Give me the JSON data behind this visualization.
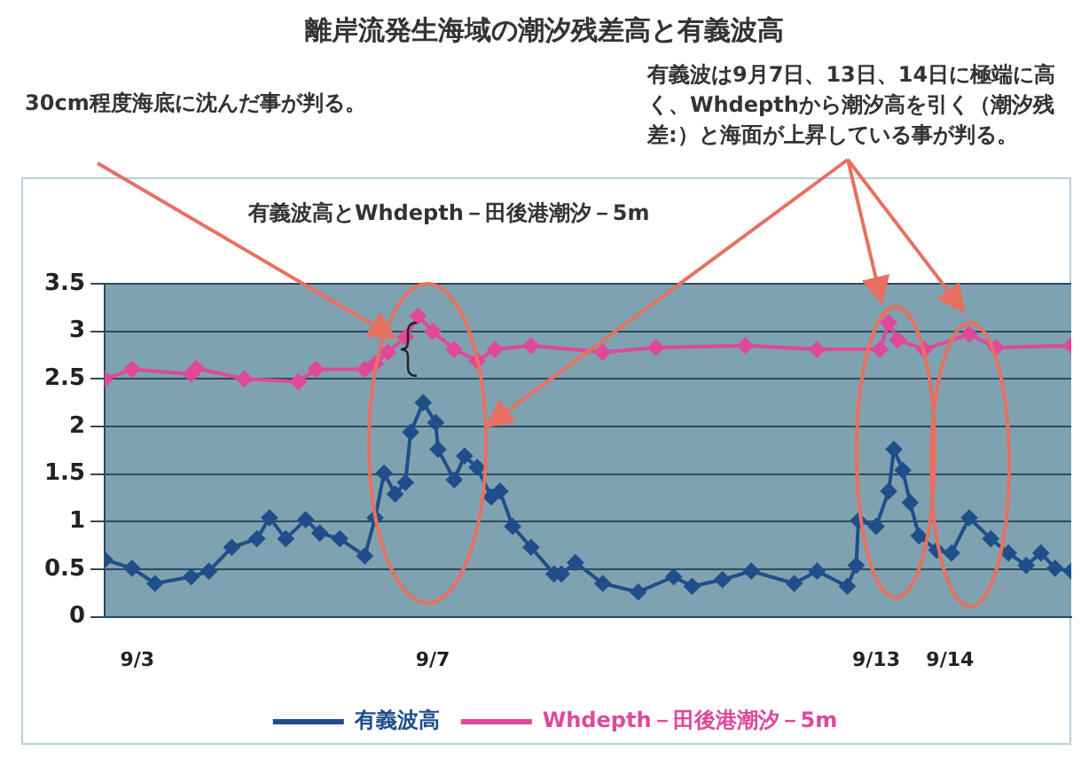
{
  "chart_data": {
    "type": "line",
    "title": "離岸流発生海域の潮汐残差高と有義波高",
    "subtitle": "有義波高とWhdepth－田後港潮汐－5m",
    "annotations": [
      "30cm程度海底に沈んだ事が判る。",
      "有義波は9月7日、13日、14日に極端に高く、Whdepthから潮汐高を引く（潮汐残差:）と海面が上昇している事が判る。"
    ],
    "xlim": [
      "--09-02T13:26",
      "--09-15T15:22"
    ],
    "xticks": [
      {
        "value": "--09-03",
        "label": "9/3"
      },
      {
        "value": "--09-07",
        "label": "9/7"
      },
      {
        "value": "--09-13",
        "label": "9/13"
      },
      {
        "value": "--09-14",
        "label": "9/14"
      }
    ],
    "ylim": [
      0,
      3.5
    ],
    "yticks": [
      0,
      0.5,
      1,
      1.5,
      2,
      2.5,
      3,
      3.5
    ],
    "grid": "y",
    "legend": "bottom",
    "marker": "diamond",
    "series": [
      {
        "name": "有義波高",
        "color": "#1f4f8a",
        "x": [
          "--09-02T13:26",
          "--09-02T22:19",
          "--09-03T05:46",
          "--09-03T17:31",
          "--09-03T23:17",
          "--09-04T06:43",
          "--09-04T14:53",
          "--09-04T18:58",
          "--09-05T00:14",
          "--09-05T06:43",
          "--09-05T11:17",
          "--09-05T17:46",
          "--09-06T01:55",
          "--09-06T05:17",
          "--09-06T08:10",
          "--09-06T11:46",
          "--09-06T15:07",
          "--09-06T16:48",
          "--09-06T20:53",
          "--09-07T00:58",
          "--09-07T01:41",
          "--09-07T06:58",
          "--09-07T10:19",
          "--09-07T14:24",
          "--09-07T18:58",
          "--09-07T21:50",
          "--09-08T01:55",
          "--09-08T07:55",
          "--09-08T15:22",
          "--09-08T17:46",
          "--09-08T22:19",
          "--09-09T07:12",
          "--09-09T18:43",
          "--09-10T06:14",
          "--09-10T12:14",
          "--09-10T22:05",
          "--09-11T07:26",
          "--09-11T21:22",
          "--09-12T04:48",
          "--09-12T14:38",
          "--09-12T17:31",
          "--09-12T18:14",
          "--09-13T00:00",
          "--09-13T04:05",
          "--09-13T05:46",
          "--09-13T08:38",
          "--09-13T11:02",
          "--09-13T13:55",
          "--09-13T19:41",
          "--09-14T00:29",
          "--09-14T06:14",
          "--09-14T13:12",
          "--09-14T18:58",
          "--09-15T00:43",
          "--09-15T05:31",
          "--09-15T10:05",
          "--09-15T15:22"
        ],
        "values": [
          0.6,
          0.51,
          0.35,
          0.42,
          0.48,
          0.73,
          0.82,
          1.04,
          0.82,
          1.02,
          0.88,
          0.82,
          0.64,
          1.04,
          1.51,
          1.29,
          1.41,
          1.94,
          2.25,
          2.04,
          1.76,
          1.44,
          1.69,
          1.57,
          1.26,
          1.32,
          0.95,
          0.73,
          0.45,
          0.45,
          0.57,
          0.35,
          0.26,
          0.42,
          0.32,
          0.39,
          0.48,
          0.35,
          0.48,
          0.32,
          0.54,
          1.01,
          0.95,
          1.32,
          1.76,
          1.54,
          1.2,
          0.85,
          0.7,
          0.67,
          1.04,
          0.82,
          0.67,
          0.54,
          0.67,
          0.51,
          0.48
        ]
      },
      {
        "name": "Whdepth－田後港潮汐－5m",
        "color": "#e0489a",
        "x": [
          "--09-02T13:26",
          "--09-02T22:19",
          "--09-03T17:31",
          "--09-03T19:12",
          "--09-04T10:48",
          "--09-05T04:19",
          "--09-05T10:05",
          "--09-06T01:55",
          "--09-06T05:17",
          "--09-06T09:22",
          "--09-06T15:07",
          "--09-06T19:12",
          "--09-07T00:00",
          "--09-07T06:58",
          "--09-07T14:24",
          "--09-07T20:10",
          "--09-08T07:55",
          "--09-09T07:12",
          "--09-10T00:29",
          "--09-11T05:31",
          "--09-12T04:48",
          "--09-13T01:12",
          "--09-13T04:05",
          "--09-13T06:58",
          "--09-13T15:36",
          "--09-14T06:14",
          "--09-14T14:53",
          "--09-15T15:22"
        ],
        "values": [
          2.5,
          2.6,
          2.55,
          2.61,
          2.5,
          2.47,
          2.6,
          2.6,
          2.66,
          2.78,
          2.94,
          3.16,
          3.0,
          2.81,
          2.69,
          2.81,
          2.85,
          2.78,
          2.83,
          2.85,
          2.81,
          2.81,
          3.09,
          2.91,
          2.81,
          2.97,
          2.83,
          2.85
        ]
      }
    ]
  }
}
